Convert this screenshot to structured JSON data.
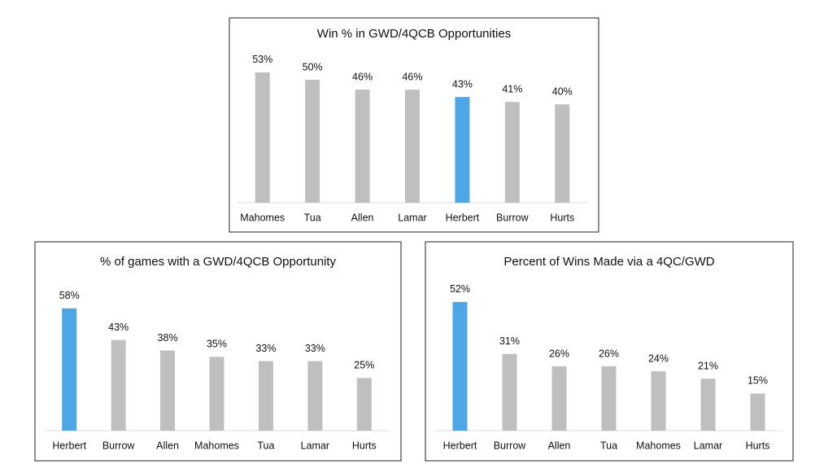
{
  "chart_data": [
    {
      "type": "bar",
      "title": "Win % in GWD/4QCB Opportunities",
      "categories": [
        "Mahomes",
        "Tua",
        "Allen",
        "Lamar",
        "Herbert",
        "Burrow",
        "Hurts"
      ],
      "values": [
        53,
        50,
        46,
        46,
        43,
        41,
        40
      ],
      "value_labels": [
        "53%",
        "50%",
        "46%",
        "46%",
        "43%",
        "41%",
        "40%"
      ],
      "colors": [
        "#bfbfbf",
        "#bfbfbf",
        "#bfbfbf",
        "#bfbfbf",
        "#4ea6e6",
        "#bfbfbf",
        "#bfbfbf"
      ]
    },
    {
      "type": "bar",
      "title": "% of games with a GWD/4QCB Opportunity",
      "categories": [
        "Herbert",
        "Burrow",
        "Allen",
        "Mahomes",
        "Tua",
        "Lamar",
        "Hurts"
      ],
      "values": [
        58,
        43,
        38,
        35,
        33,
        33,
        25
      ],
      "value_labels": [
        "58%",
        "43%",
        "38%",
        "35%",
        "33%",
        "33%",
        "25%"
      ],
      "colors": [
        "#4ea6e6",
        "#bfbfbf",
        "#bfbfbf",
        "#bfbfbf",
        "#bfbfbf",
        "#bfbfbf",
        "#bfbfbf"
      ]
    },
    {
      "type": "bar",
      "title": "Percent of Wins Made via a 4QC/GWD",
      "categories": [
        "Herbert",
        "Burrow",
        "Allen",
        "Tua",
        "Mahomes",
        "Lamar",
        "Hurts"
      ],
      "values": [
        52,
        31,
        26,
        26,
        24,
        21,
        15
      ],
      "value_labels": [
        "52%",
        "31%",
        "26%",
        "26%",
        "24%",
        "21%",
        "15%"
      ],
      "colors": [
        "#4ea6e6",
        "#bfbfbf",
        "#bfbfbf",
        "#bfbfbf",
        "#bfbfbf",
        "#bfbfbf",
        "#bfbfbf"
      ]
    }
  ]
}
